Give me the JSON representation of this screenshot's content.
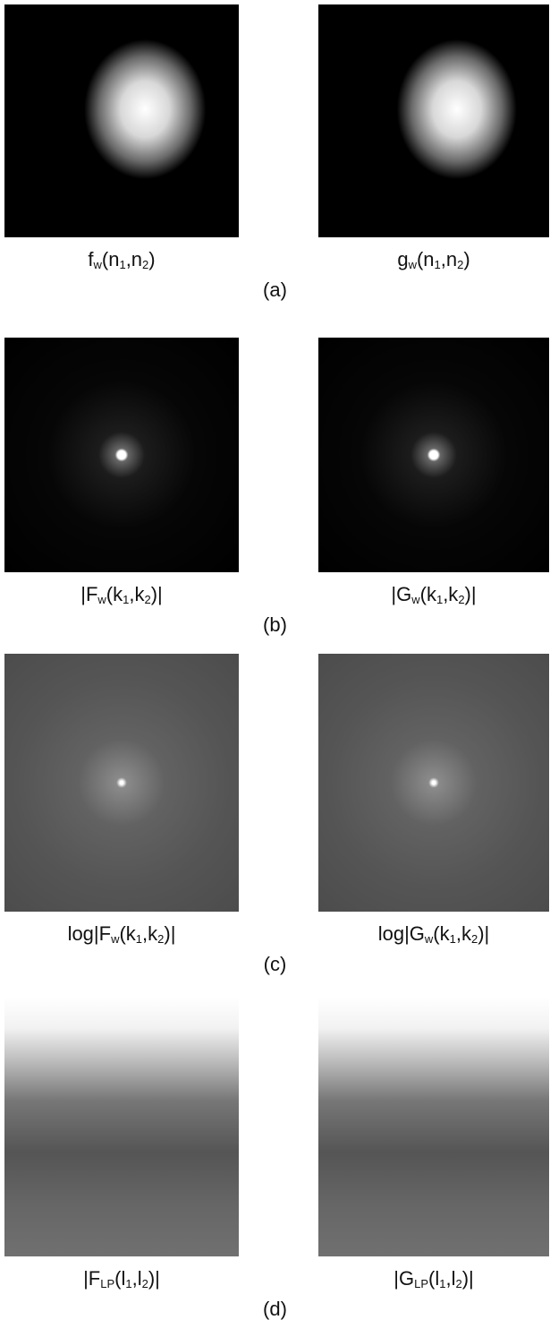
{
  "rows": [
    {
      "label": "(a)",
      "left": [
        {
          "text": "f"
        },
        {
          "text": "w",
          "sub": true
        },
        {
          "text": "(n"
        },
        {
          "text": "1",
          "sub": true
        },
        {
          "text": ",n"
        },
        {
          "text": "2",
          "sub": true
        },
        {
          "text": ")"
        }
      ],
      "right": [
        {
          "text": "g"
        },
        {
          "text": "w",
          "sub": true
        },
        {
          "text": "(n"
        },
        {
          "text": "1",
          "sub": true
        },
        {
          "text": ",n"
        },
        {
          "text": "2",
          "sub": true
        },
        {
          "text": ")"
        }
      ]
    },
    {
      "label": "(b)",
      "left": [
        {
          "text": "|F"
        },
        {
          "text": "w",
          "sub": true
        },
        {
          "text": "(k"
        },
        {
          "text": "1",
          "sub": true
        },
        {
          "text": ",k"
        },
        {
          "text": "2",
          "sub": true
        },
        {
          "text": ")|"
        }
      ],
      "right": [
        {
          "text": "|G"
        },
        {
          "text": "w",
          "sub": true
        },
        {
          "text": "(k"
        },
        {
          "text": "1",
          "sub": true
        },
        {
          "text": ",k"
        },
        {
          "text": "2",
          "sub": true
        },
        {
          "text": ")|"
        }
      ]
    },
    {
      "label": "(c)",
      "left": [
        {
          "text": "log|F"
        },
        {
          "text": "w",
          "sub": true
        },
        {
          "text": "(k"
        },
        {
          "text": "1",
          "sub": true
        },
        {
          "text": ",k"
        },
        {
          "text": "2",
          "sub": true
        },
        {
          "text": ")|"
        }
      ],
      "right": [
        {
          "text": "log|G"
        },
        {
          "text": "w",
          "sub": true
        },
        {
          "text": "(k"
        },
        {
          "text": "1",
          "sub": true
        },
        {
          "text": ",k"
        },
        {
          "text": "2",
          "sub": true
        },
        {
          "text": ")|"
        }
      ]
    },
    {
      "label": "(d)",
      "left": [
        {
          "text": "|F"
        },
        {
          "text": "LP",
          "sub": true
        },
        {
          "text": "(l"
        },
        {
          "text": "1",
          "sub": true
        },
        {
          "text": ",l"
        },
        {
          "text": "2",
          "sub": true
        },
        {
          "text": ")|"
        }
      ],
      "right": [
        {
          "text": "|G"
        },
        {
          "text": "LP",
          "sub": true
        },
        {
          "text": "(l"
        },
        {
          "text": "1",
          "sub": true
        },
        {
          "text": ",l"
        },
        {
          "text": "2",
          "sub": true
        },
        {
          "text": ")|"
        }
      ]
    }
  ]
}
